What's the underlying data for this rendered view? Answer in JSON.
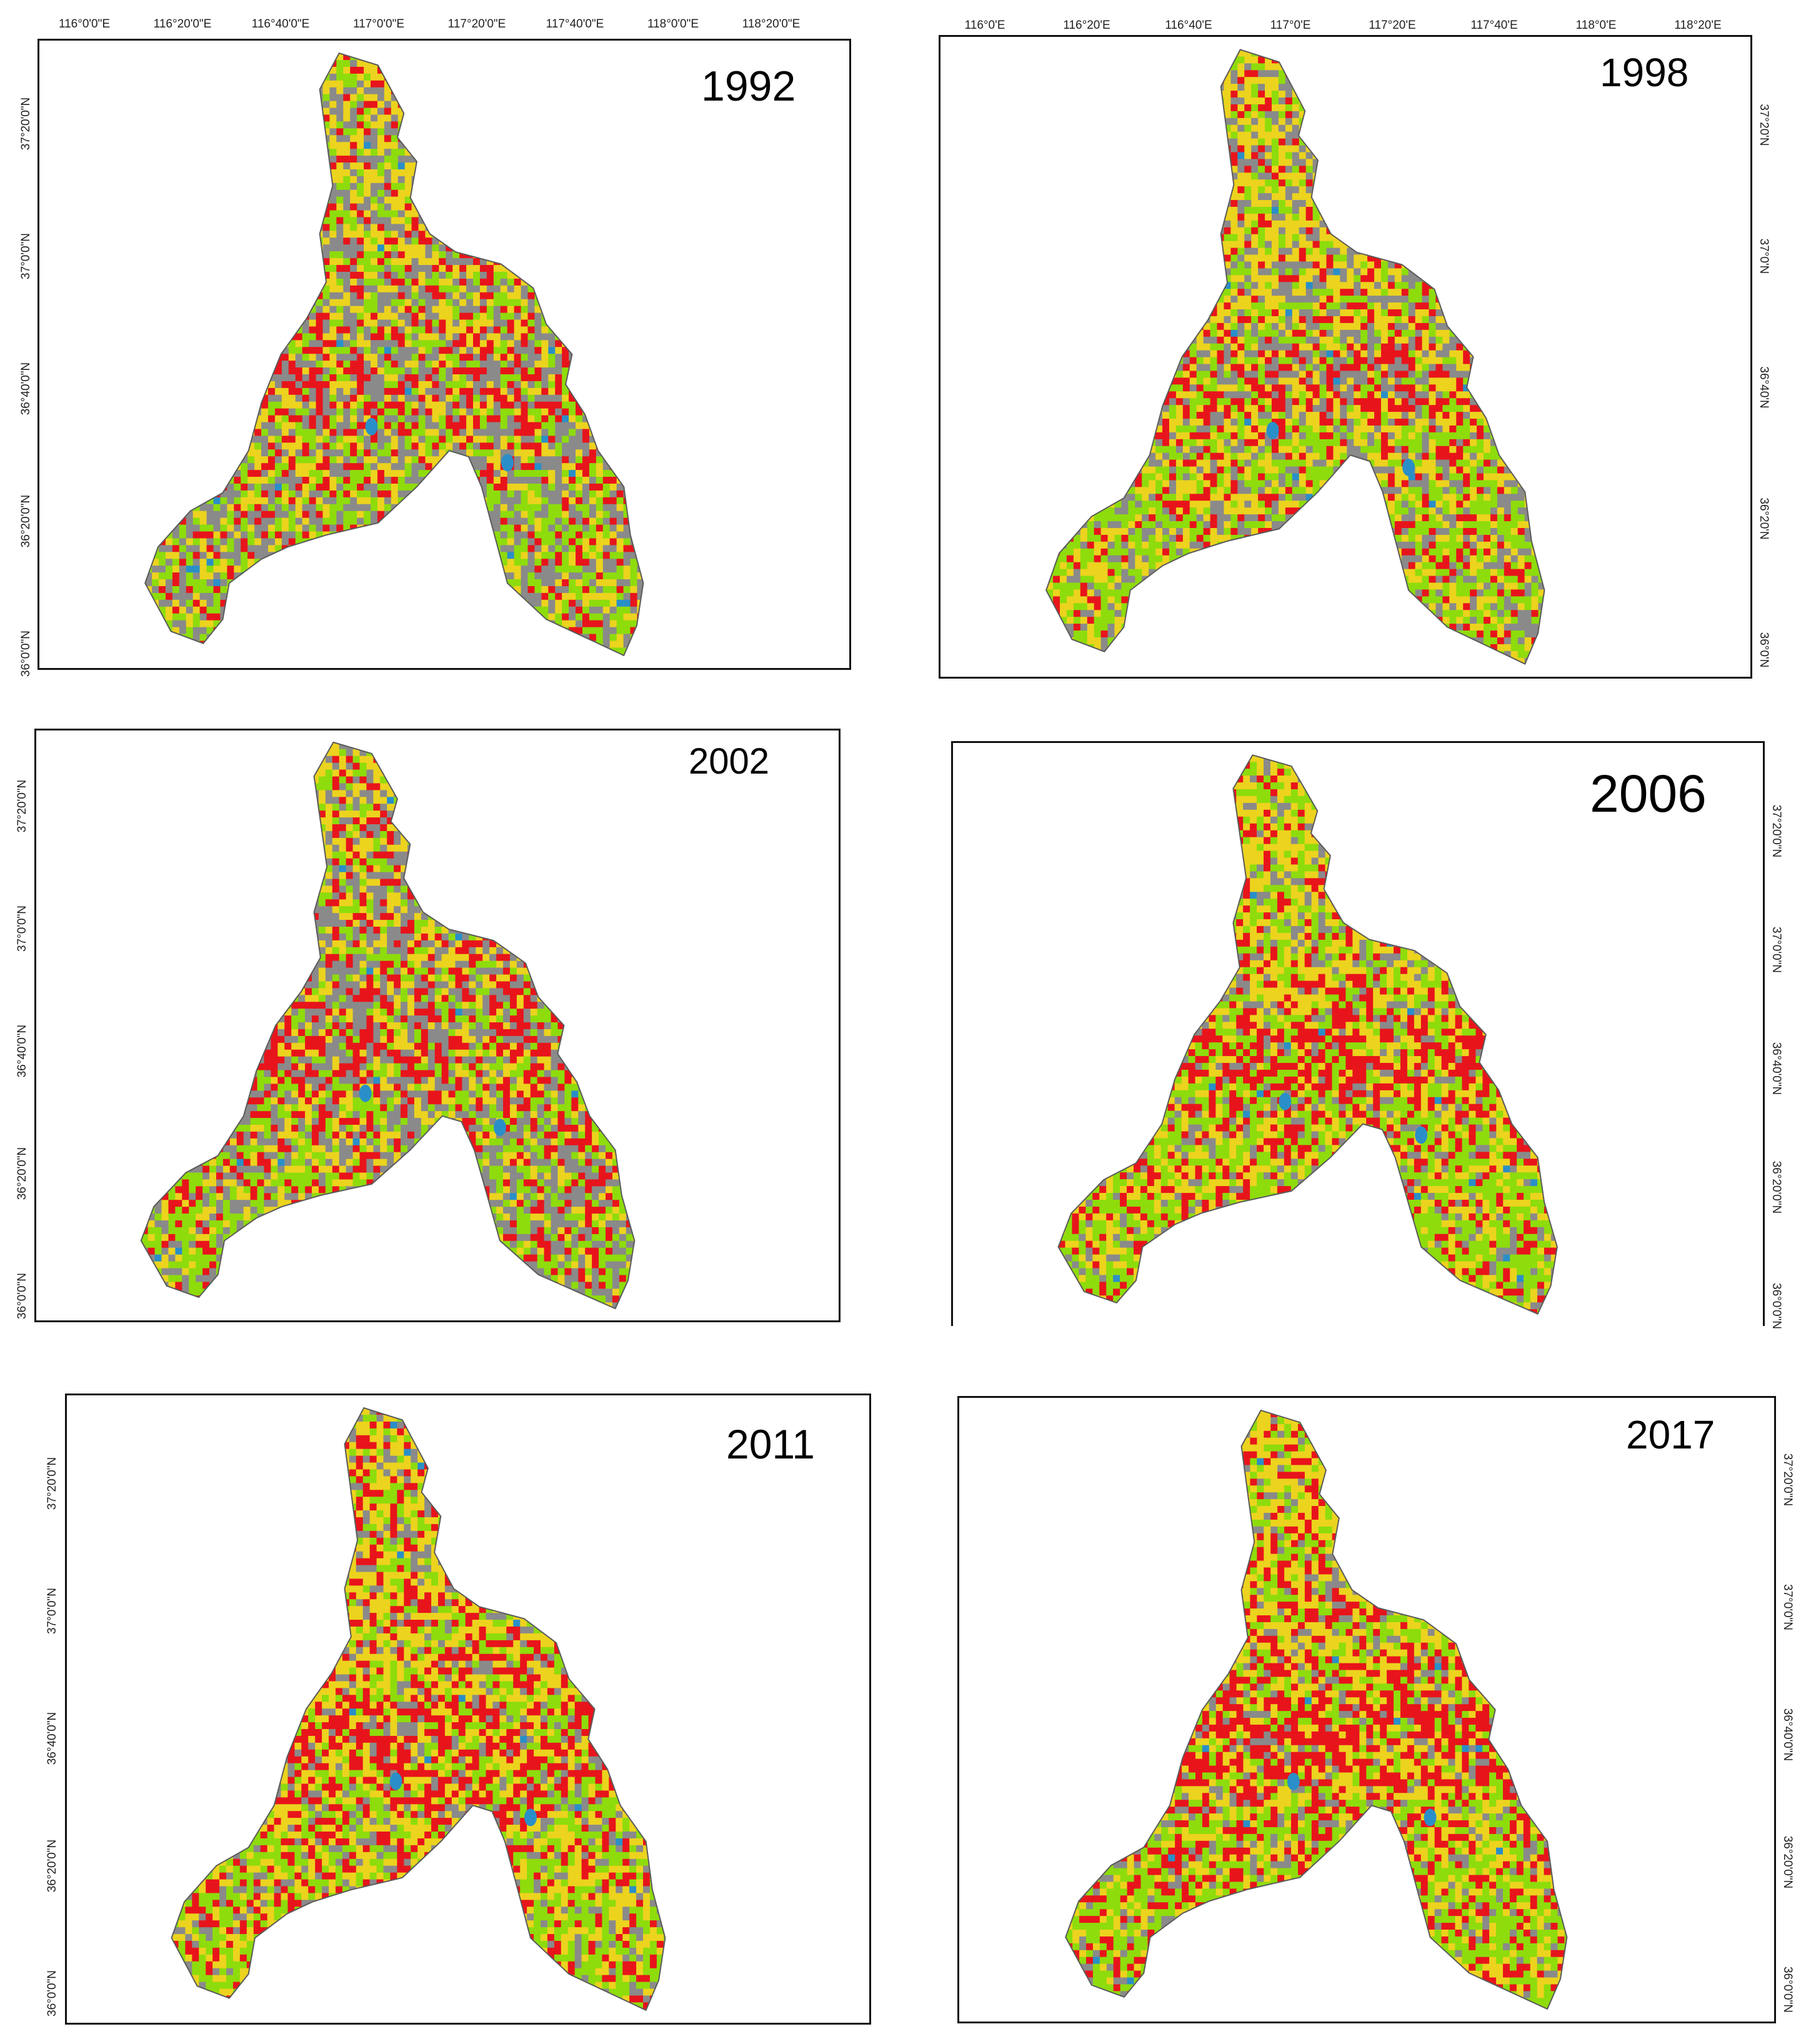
{
  "colors": {
    "builtup": "#e8141b",
    "cropland": "#ecd31e",
    "forest": "#8edc0c",
    "grassland": "#8a8a8a",
    "water": "#2a8fc8",
    "unused": "#c9b9e6",
    "lon_axis": "#222222"
  },
  "panels": [
    {
      "year": "1992",
      "top_ticks": [
        "116°0'0\"E",
        "116°20'0\"E",
        "116°40'0\"E",
        "117°0'0\"E",
        "117°20'0\"E",
        "117°40'0\"E",
        "118°0'0\"E",
        "118°20'0\"E"
      ],
      "side_ticks": [
        "37°20'0\"N",
        "37°0'0\"N",
        "36°40'0\"N",
        "36°20'0\"N",
        "36°0'0\"N"
      ],
      "mix": {
        "builtup": 0.18,
        "cropland": 0.22,
        "forest": 0.22,
        "grassland": 0.36,
        "water": 0.02
      }
    },
    {
      "year": "1998",
      "top_ticks": [
        "116°0'E",
        "116°20'E",
        "116°40'E",
        "117°0'E",
        "117°20'E",
        "117°40'E",
        "118°0'E",
        "118°20'E"
      ],
      "side_ticks": [
        "37°20'N",
        "37°0'N",
        "36°40'N",
        "36°20'N",
        "36°0'N"
      ],
      "mix": {
        "builtup": 0.16,
        "cropland": 0.3,
        "forest": 0.26,
        "grassland": 0.26,
        "water": 0.02
      }
    },
    {
      "year": "2002",
      "top_ticks": [],
      "side_ticks": [
        "37°20'0\"N",
        "37°0'0\"N",
        "36°40'0\"N",
        "36°20'0\"N",
        "36°0'0\"N"
      ],
      "mix": {
        "builtup": 0.2,
        "cropland": 0.2,
        "forest": 0.22,
        "grassland": 0.36,
        "water": 0.02
      }
    },
    {
      "year": "2006",
      "top_ticks": [],
      "side_ticks": [
        "37°20'0\"N",
        "37°0'0\"N",
        "36°40'0\"N",
        "36°20'0\"N",
        "36°0'0\"N"
      ],
      "mix": {
        "builtup": 0.24,
        "cropland": 0.28,
        "forest": 0.3,
        "grassland": 0.16,
        "water": 0.02
      }
    },
    {
      "year": "2011",
      "top_ticks": [],
      "side_ticks": [
        "37°20'0\"N",
        "37°0'0\"N",
        "36°40'0\"N",
        "36°20'0\"N",
        "36°0'0\"N"
      ],
      "mix": {
        "builtup": 0.24,
        "cropland": 0.3,
        "forest": 0.26,
        "grassland": 0.18,
        "water": 0.02
      }
    },
    {
      "year": "2017",
      "top_ticks": [],
      "side_ticks": [
        "37°20'0\"N",
        "37°0'0\"N",
        "36°40'0\"N",
        "36°20'0\"N",
        "36°0'0\"N"
      ],
      "mix": {
        "builtup": 0.28,
        "cropland": 0.3,
        "forest": 0.26,
        "grassland": 0.14,
        "water": 0.02
      }
    }
  ]
}
